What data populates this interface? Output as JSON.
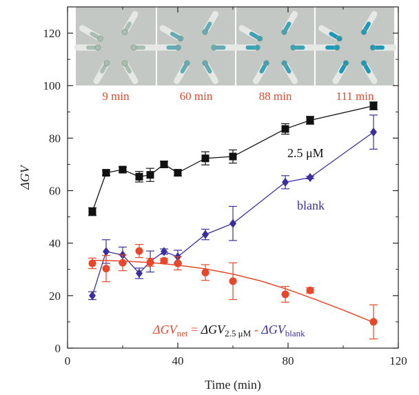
{
  "chart_data": {
    "type": "scatter",
    "xlabel": "Time (min)",
    "ylabel": "ΔGV",
    "xlim": [
      0,
      120
    ],
    "ylim": [
      0,
      130
    ],
    "x_ticks": [
      0,
      40,
      80,
      120
    ],
    "x_minor_ticks": [
      20,
      60,
      100
    ],
    "y_ticks": [
      0,
      20,
      40,
      60,
      80,
      100,
      120
    ],
    "grid": false,
    "legend": "none",
    "series": [
      {
        "name": "2.5 µM",
        "color": "#111111",
        "marker": "square",
        "line": "connected",
        "x": [
          9,
          14,
          20,
          26,
          30,
          35,
          40,
          50,
          60,
          79,
          88,
          111
        ],
        "y": [
          52,
          66.8,
          68,
          65.3,
          66,
          70,
          66.8,
          72.3,
          73,
          83.5,
          86.8,
          92.3
        ],
        "err": [
          1.5,
          1,
          1,
          2,
          2.5,
          1.2,
          1.2,
          2.5,
          2.5,
          2,
          1.5,
          1.5
        ]
      },
      {
        "name": "blank",
        "color": "#3b2fa0",
        "marker": "diamond",
        "line": "connected",
        "x": [
          9,
          14,
          20,
          26,
          30,
          35,
          40,
          50,
          60,
          79,
          88,
          111
        ],
        "y": [
          20,
          36.8,
          35.5,
          28.5,
          33,
          36.8,
          34.8,
          43.3,
          47.5,
          63.2,
          65,
          82.3
        ],
        "err": [
          1.5,
          4.5,
          3,
          2,
          4,
          1,
          2.5,
          2,
          6.5,
          2.5,
          0.5,
          6.5
        ]
      },
      {
        "name": "ΔGV_net",
        "color": "#e8472a",
        "marker": "circle",
        "line": "fit-curve",
        "x": [
          9,
          14,
          20,
          26,
          30,
          35,
          40,
          50,
          60,
          79,
          88,
          111
        ],
        "y": [
          32.3,
          30.3,
          32.5,
          37,
          32.7,
          33.3,
          32.3,
          28.8,
          25.5,
          20.5,
          22,
          10
        ],
        "err": [
          2,
          5,
          3,
          2.5,
          1.5,
          0.8,
          2.5,
          3,
          7,
          3,
          1,
          6.5
        ],
        "fit_curve": {
          "x": [
            9,
            20,
            30,
            40,
            50,
            60,
            70,
            80,
            90,
            100,
            111
          ],
          "y": [
            33.5,
            33.2,
            32.6,
            31.6,
            30.2,
            28.2,
            25.6,
            22.3,
            18.5,
            14.5,
            9.8
          ]
        }
      }
    ],
    "annotations": [
      {
        "text": "2.5 μM",
        "color": "#111111"
      },
      {
        "text": "blank",
        "color": "#3b2fa0"
      }
    ],
    "equation": {
      "color": "#e8472a",
      "lhs_base": "ΔGV",
      "lhs_sub": "net",
      "eq": " = ",
      "t1_base": "ΔGV",
      "t1_sub": "2.5 μM",
      "minus": " - ",
      "t2_base": "ΔGV",
      "t2_sub": "blank"
    },
    "inset_photos": [
      {
        "caption": "9 min",
        "blue_level": 0.1
      },
      {
        "caption": "60 min",
        "blue_level": 0.55
      },
      {
        "caption": "88 min",
        "blue_level": 0.8
      },
      {
        "caption": "111 min",
        "blue_level": 1.0
      }
    ],
    "caption_color": "#e8472a"
  }
}
